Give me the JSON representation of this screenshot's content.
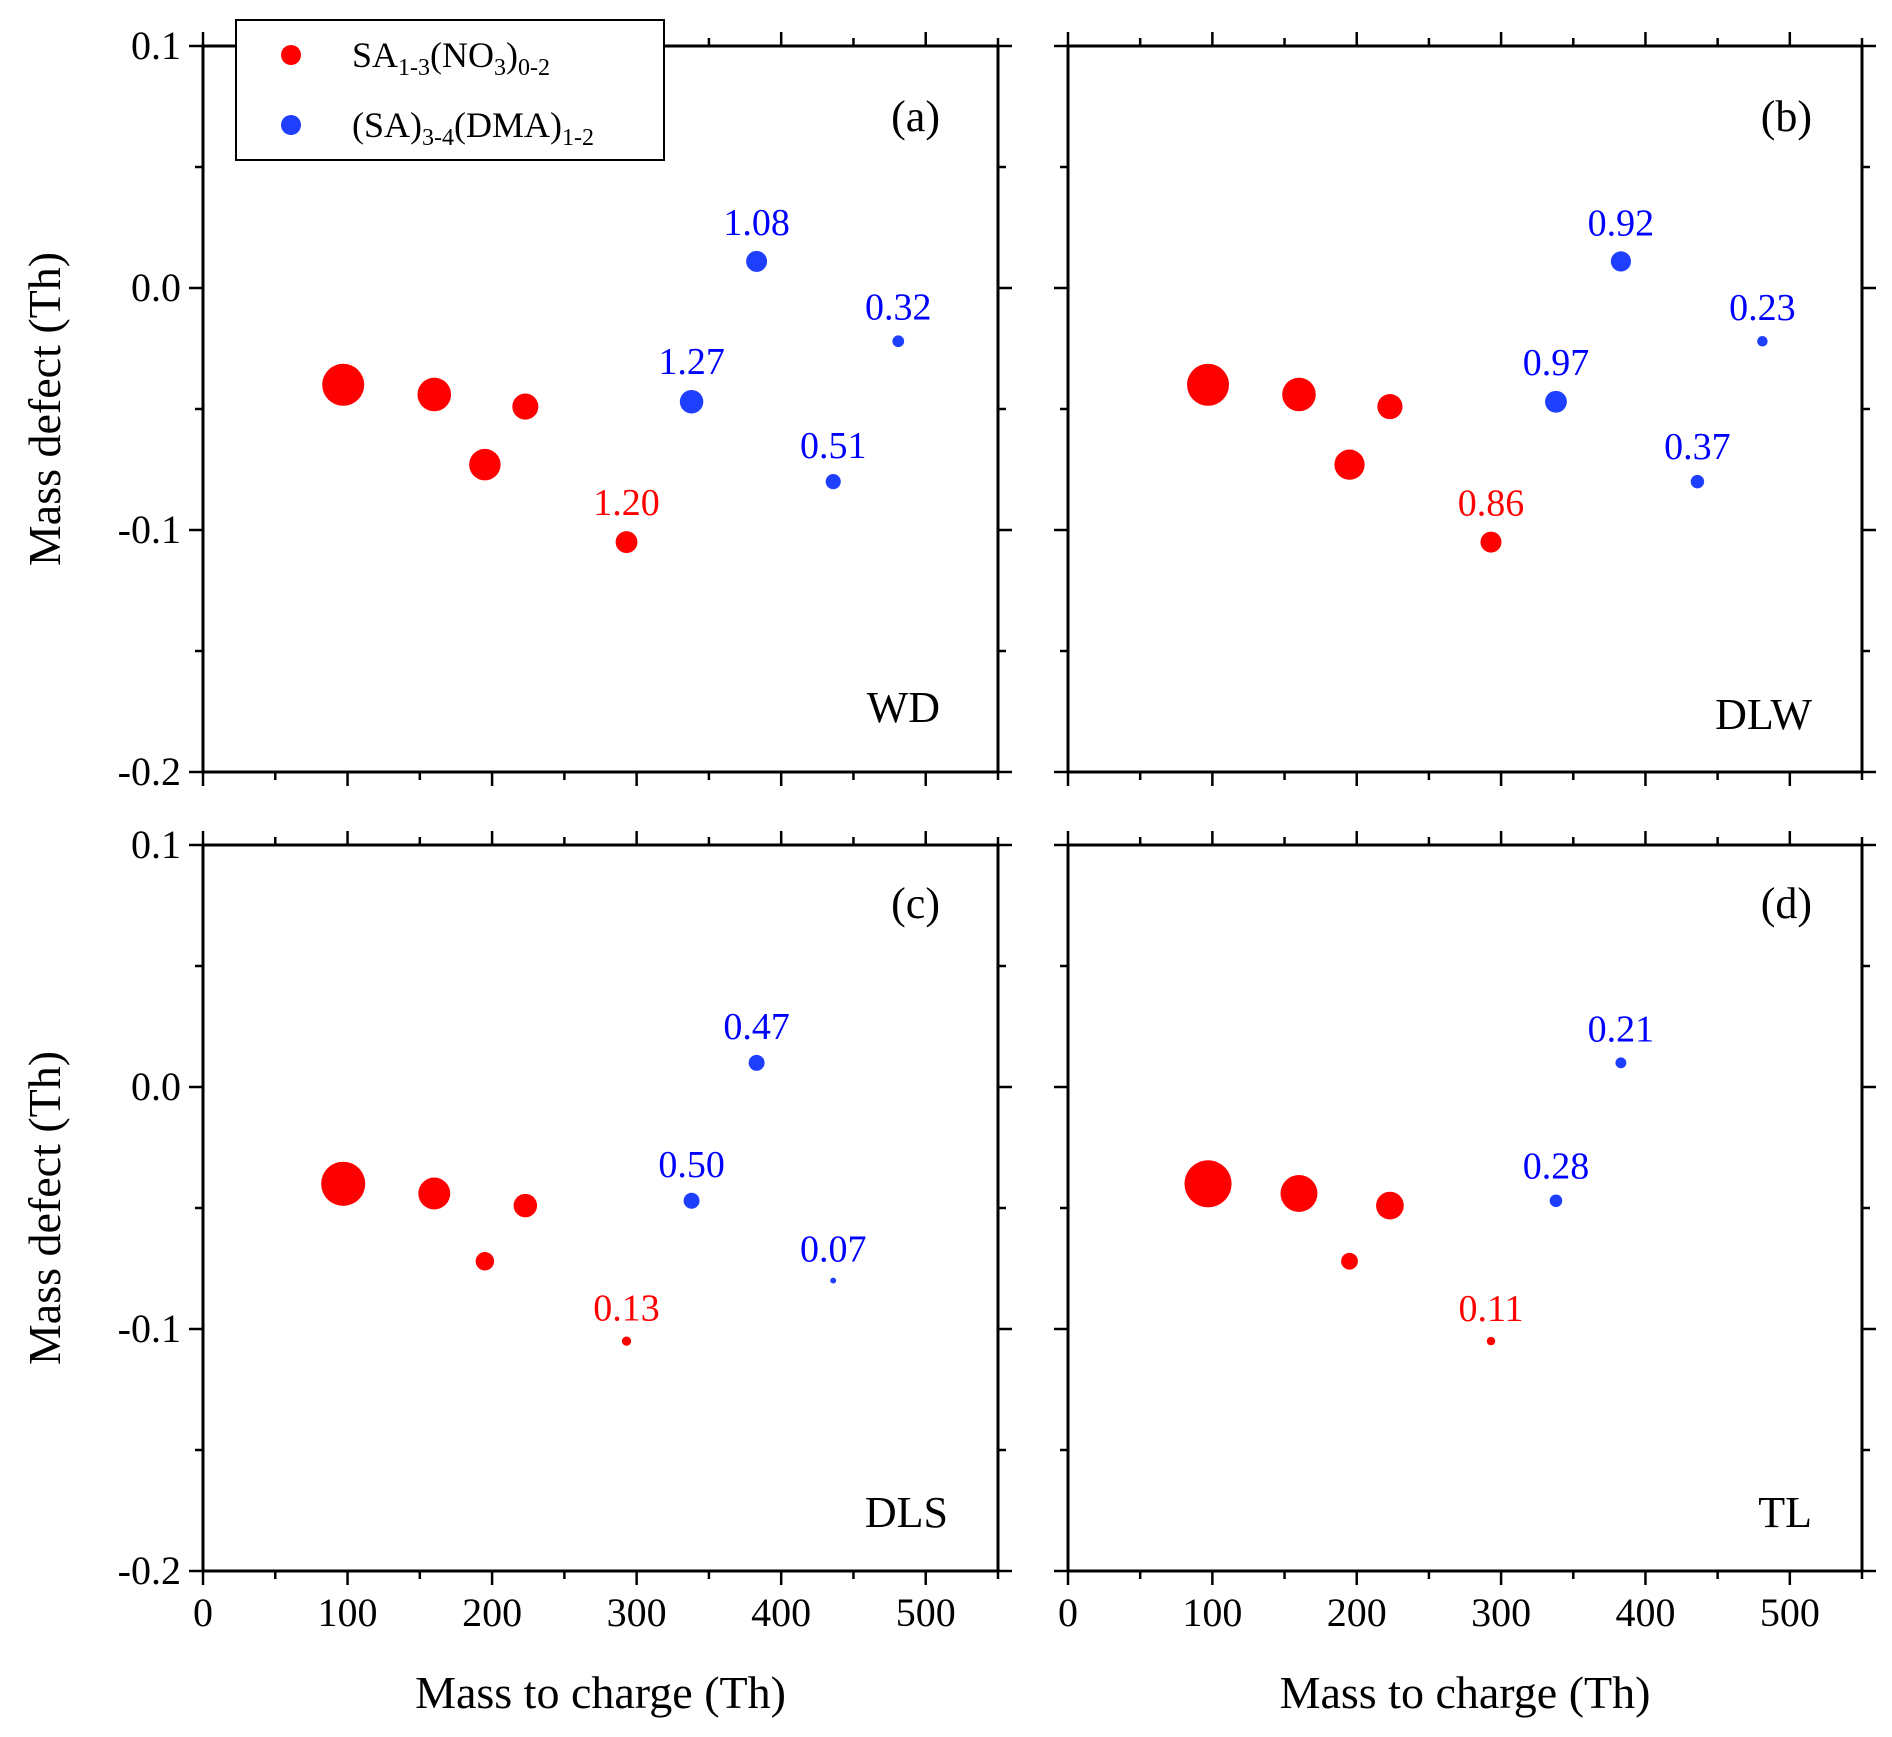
{
  "colors": {
    "series1": "#ff0000",
    "series2": "#1f3fff",
    "label2": "#0000ff",
    "axis": "#000000"
  },
  "legend": {
    "items": [
      {
        "color": "#ff0000",
        "parts": [
          {
            "t": "SA",
            "s": ""
          },
          {
            "t": "1-3",
            "s": "sub"
          },
          {
            "t": "(NO",
            "s": ""
          },
          {
            "t": "3",
            "s": "sub"
          },
          {
            "t": ")",
            "s": ""
          },
          {
            "t": "0-2",
            "s": "sub"
          }
        ]
      },
      {
        "color": "#1f3fff",
        "parts": [
          {
            "t": "(SA)",
            "s": ""
          },
          {
            "t": "3-4",
            "s": "sub"
          },
          {
            "t": "(DMA)",
            "s": ""
          },
          {
            "t": "1-2",
            "s": "sub"
          }
        ]
      }
    ]
  },
  "axes": {
    "xlabel": "Mass to charge (Th)",
    "ylabel": "Mass defect (Th)",
    "xlim": [
      0,
      550
    ],
    "ylim": [
      -0.2,
      0.1
    ],
    "xticks": [
      0,
      100,
      200,
      300,
      400,
      500
    ],
    "xtick_labels": [
      "0",
      "100",
      "200",
      "300",
      "400",
      "500"
    ],
    "yticks": [
      -0.2,
      -0.1,
      0.0,
      0.1
    ],
    "ytick_labels": [
      "-0.2",
      "-0.1",
      "0.0",
      "0.1"
    ]
  },
  "chart_data": [
    {
      "type": "scatter",
      "panel": "(a)",
      "site": "WD",
      "series": [
        {
          "name": "SA1-3(NO3)0-2",
          "color": "#ff0000",
          "points": [
            {
              "x": 97,
              "y": -0.04,
              "size": 1.0,
              "label": ""
            },
            {
              "x": 160,
              "y": -0.044,
              "size": 0.8,
              "label": ""
            },
            {
              "x": 195,
              "y": -0.073,
              "size": 0.75,
              "label": ""
            },
            {
              "x": 223,
              "y": -0.049,
              "size": 0.62,
              "label": ""
            },
            {
              "x": 293,
              "y": -0.105,
              "size": 0.52,
              "label": "1.20"
            }
          ]
        },
        {
          "name": "(SA)3-4(DMA)1-2",
          "color": "#1f3fff",
          "points": [
            {
              "x": 338,
              "y": -0.047,
              "size": 0.56,
              "label": "1.27"
            },
            {
              "x": 383,
              "y": 0.011,
              "size": 0.5,
              "label": "1.08"
            },
            {
              "x": 436,
              "y": -0.08,
              "size": 0.36,
              "label": "0.51"
            },
            {
              "x": 481,
              "y": -0.022,
              "size": 0.28,
              "label": "0.32"
            }
          ]
        }
      ]
    },
    {
      "type": "scatter",
      "panel": "(b)",
      "site": "DLW",
      "series": [
        {
          "name": "SA1-3(NO3)0-2",
          "color": "#ff0000",
          "points": [
            {
              "x": 97,
              "y": -0.04,
              "size": 1.0,
              "label": ""
            },
            {
              "x": 160,
              "y": -0.044,
              "size": 0.8,
              "label": ""
            },
            {
              "x": 195,
              "y": -0.073,
              "size": 0.72,
              "label": ""
            },
            {
              "x": 223,
              "y": -0.049,
              "size": 0.6,
              "label": ""
            },
            {
              "x": 293,
              "y": -0.105,
              "size": 0.5,
              "label": "0.86"
            }
          ]
        },
        {
          "name": "(SA)3-4(DMA)1-2",
          "color": "#1f3fff",
          "points": [
            {
              "x": 338,
              "y": -0.047,
              "size": 0.52,
              "label": "0.97"
            },
            {
              "x": 383,
              "y": 0.011,
              "size": 0.48,
              "label": "0.92"
            },
            {
              "x": 436,
              "y": -0.08,
              "size": 0.32,
              "label": "0.37"
            },
            {
              "x": 481,
              "y": -0.022,
              "size": 0.25,
              "label": "0.23"
            }
          ]
        }
      ]
    },
    {
      "type": "scatter",
      "panel": "(c)",
      "site": "DLS",
      "series": [
        {
          "name": "SA1-3(NO3)0-2",
          "color": "#ff0000",
          "points": [
            {
              "x": 97,
              "y": -0.04,
              "size": 1.05,
              "label": ""
            },
            {
              "x": 160,
              "y": -0.044,
              "size": 0.76,
              "label": ""
            },
            {
              "x": 195,
              "y": -0.072,
              "size": 0.44,
              "label": ""
            },
            {
              "x": 223,
              "y": -0.049,
              "size": 0.56,
              "label": ""
            },
            {
              "x": 293,
              "y": -0.105,
              "size": 0.22,
              "label": "0.13"
            }
          ]
        },
        {
          "name": "(SA)3-4(DMA)1-2",
          "color": "#1f3fff",
          "points": [
            {
              "x": 338,
              "y": -0.047,
              "size": 0.38,
              "label": "0.50"
            },
            {
              "x": 383,
              "y": 0.01,
              "size": 0.38,
              "label": "0.47"
            },
            {
              "x": 436,
              "y": -0.08,
              "size": 0.14,
              "label": "0.07"
            }
          ]
        }
      ]
    },
    {
      "type": "scatter",
      "panel": "(d)",
      "site": "TL",
      "series": [
        {
          "name": "SA1-3(NO3)0-2",
          "color": "#ff0000",
          "points": [
            {
              "x": 97,
              "y": -0.04,
              "size": 1.12,
              "label": ""
            },
            {
              "x": 160,
              "y": -0.044,
              "size": 0.88,
              "label": ""
            },
            {
              "x": 195,
              "y": -0.072,
              "size": 0.4,
              "label": ""
            },
            {
              "x": 223,
              "y": -0.049,
              "size": 0.66,
              "label": ""
            },
            {
              "x": 293,
              "y": -0.105,
              "size": 0.2,
              "label": "0.11"
            }
          ]
        },
        {
          "name": "(SA)3-4(DMA)1-2",
          "color": "#1f3fff",
          "points": [
            {
              "x": 338,
              "y": -0.047,
              "size": 0.3,
              "label": "0.28"
            },
            {
              "x": 383,
              "y": 0.01,
              "size": 0.26,
              "label": "0.21"
            }
          ]
        }
      ]
    }
  ]
}
